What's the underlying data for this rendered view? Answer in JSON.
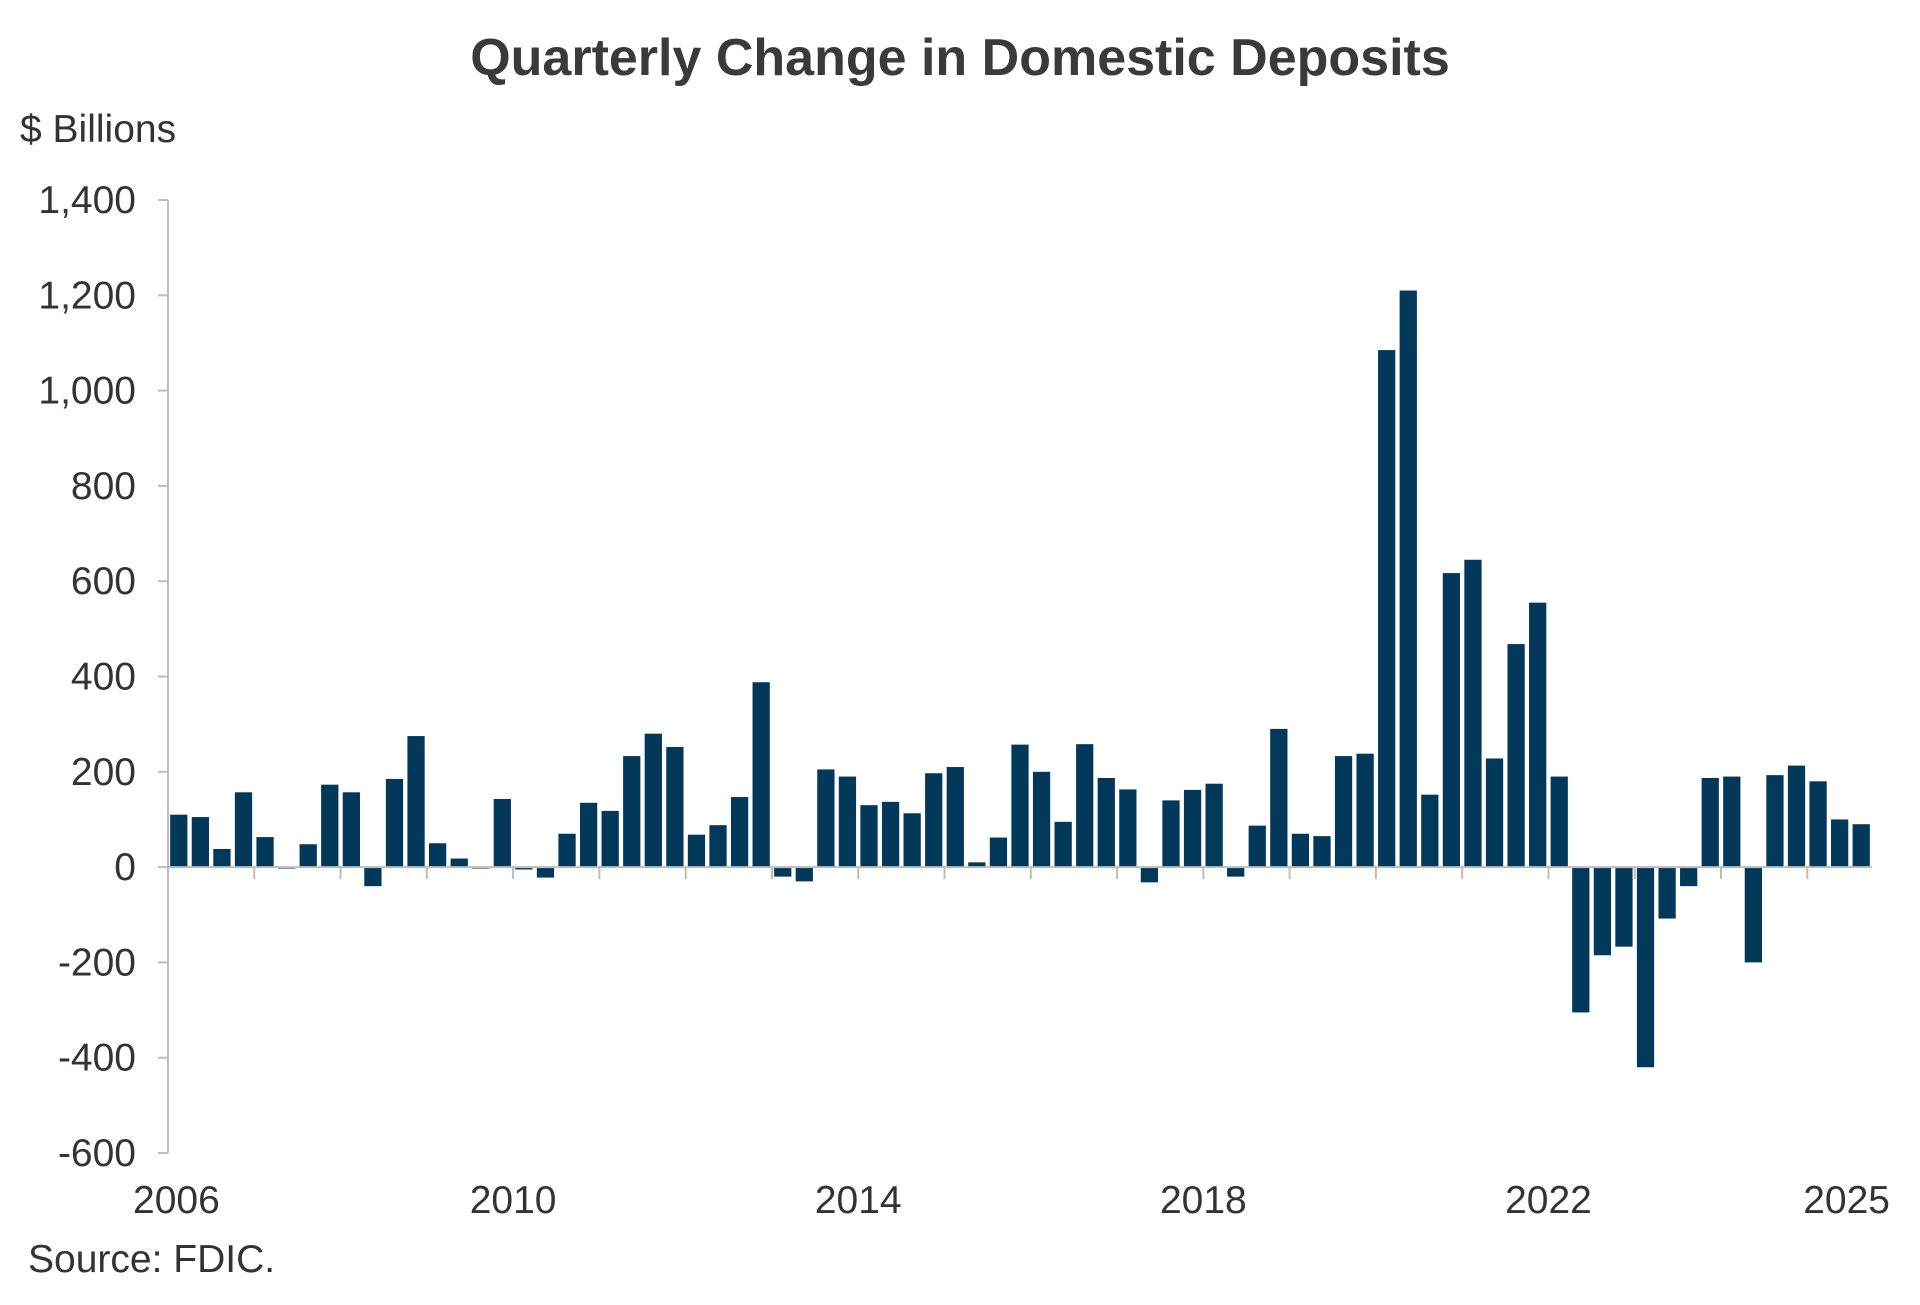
{
  "chart_data": {
    "type": "bar",
    "title": "Quarterly Change in Domestic Deposits",
    "ylabel": "$ Billions",
    "xlabel": "",
    "source": "Source: FDIC.",
    "ylim": [
      -600,
      1400
    ],
    "yticks": [
      1400,
      1200,
      1000,
      800,
      600,
      400,
      200,
      0,
      -200,
      -400,
      -600
    ],
    "ytick_labels": [
      "1,400",
      "1,200",
      "1,000",
      "800",
      "600",
      "400",
      "200",
      "0",
      "-200",
      "-400",
      "-600"
    ],
    "xtick_labels": [
      {
        "label": "2006",
        "index": 0
      },
      {
        "label": "2010",
        "index": 16
      },
      {
        "label": "2014",
        "index": 32
      },
      {
        "label": "2018",
        "index": 48
      },
      {
        "label": "2022",
        "index": 64
      },
      {
        "label": "2025",
        "index": 76
      }
    ],
    "grid": false,
    "bar_color": "#02385a",
    "categories": [
      "2006Q1",
      "2006Q2",
      "2006Q3",
      "2006Q4",
      "2007Q1",
      "2007Q2",
      "2007Q3",
      "2007Q4",
      "2008Q1",
      "2008Q2",
      "2008Q3",
      "2008Q4",
      "2009Q1",
      "2009Q2",
      "2009Q3",
      "2009Q4",
      "2010Q1",
      "2010Q2",
      "2010Q3",
      "2010Q4",
      "2011Q1",
      "2011Q2",
      "2011Q3",
      "2011Q4",
      "2012Q1",
      "2012Q2",
      "2012Q3",
      "2012Q4",
      "2013Q1",
      "2013Q2",
      "2013Q3",
      "2013Q4",
      "2014Q1",
      "2014Q2",
      "2014Q3",
      "2014Q4",
      "2015Q1",
      "2015Q2",
      "2015Q3",
      "2015Q4",
      "2016Q1",
      "2016Q2",
      "2016Q3",
      "2016Q4",
      "2017Q1",
      "2017Q2",
      "2017Q3",
      "2017Q4",
      "2018Q1",
      "2018Q2",
      "2018Q3",
      "2018Q4",
      "2019Q1",
      "2019Q2",
      "2019Q3",
      "2019Q4",
      "2020Q1",
      "2020Q2",
      "2020Q3",
      "2020Q4",
      "2021Q1",
      "2021Q2",
      "2021Q3",
      "2021Q4",
      "2022Q1",
      "2022Q2",
      "2022Q3",
      "2022Q4",
      "2023Q1",
      "2023Q2",
      "2023Q3",
      "2023Q4",
      "2024Q1",
      "2024Q2",
      "2024Q3",
      "2024Q4",
      "2025Q1",
      "2025Q2",
      "2025Q3"
    ],
    "values": [
      110,
      105,
      38,
      157,
      63,
      -3,
      48,
      173,
      157,
      -40,
      185,
      275,
      50,
      18,
      -3,
      143,
      -5,
      -22,
      70,
      135,
      118,
      233,
      280,
      252,
      68,
      88,
      147,
      388,
      -20,
      -30,
      205,
      190,
      130,
      137,
      113,
      197,
      210,
      10,
      62,
      257,
      200,
      95,
      258,
      187,
      163,
      -32,
      140,
      162,
      175,
      -20,
      87,
      290,
      70,
      65,
      233,
      238,
      1085,
      1210,
      152,
      617,
      645,
      228,
      468,
      555,
      190,
      -305,
      -185,
      -167,
      -420,
      -108,
      -40,
      187,
      190,
      -200,
      193,
      213,
      180,
      100,
      90
    ]
  }
}
